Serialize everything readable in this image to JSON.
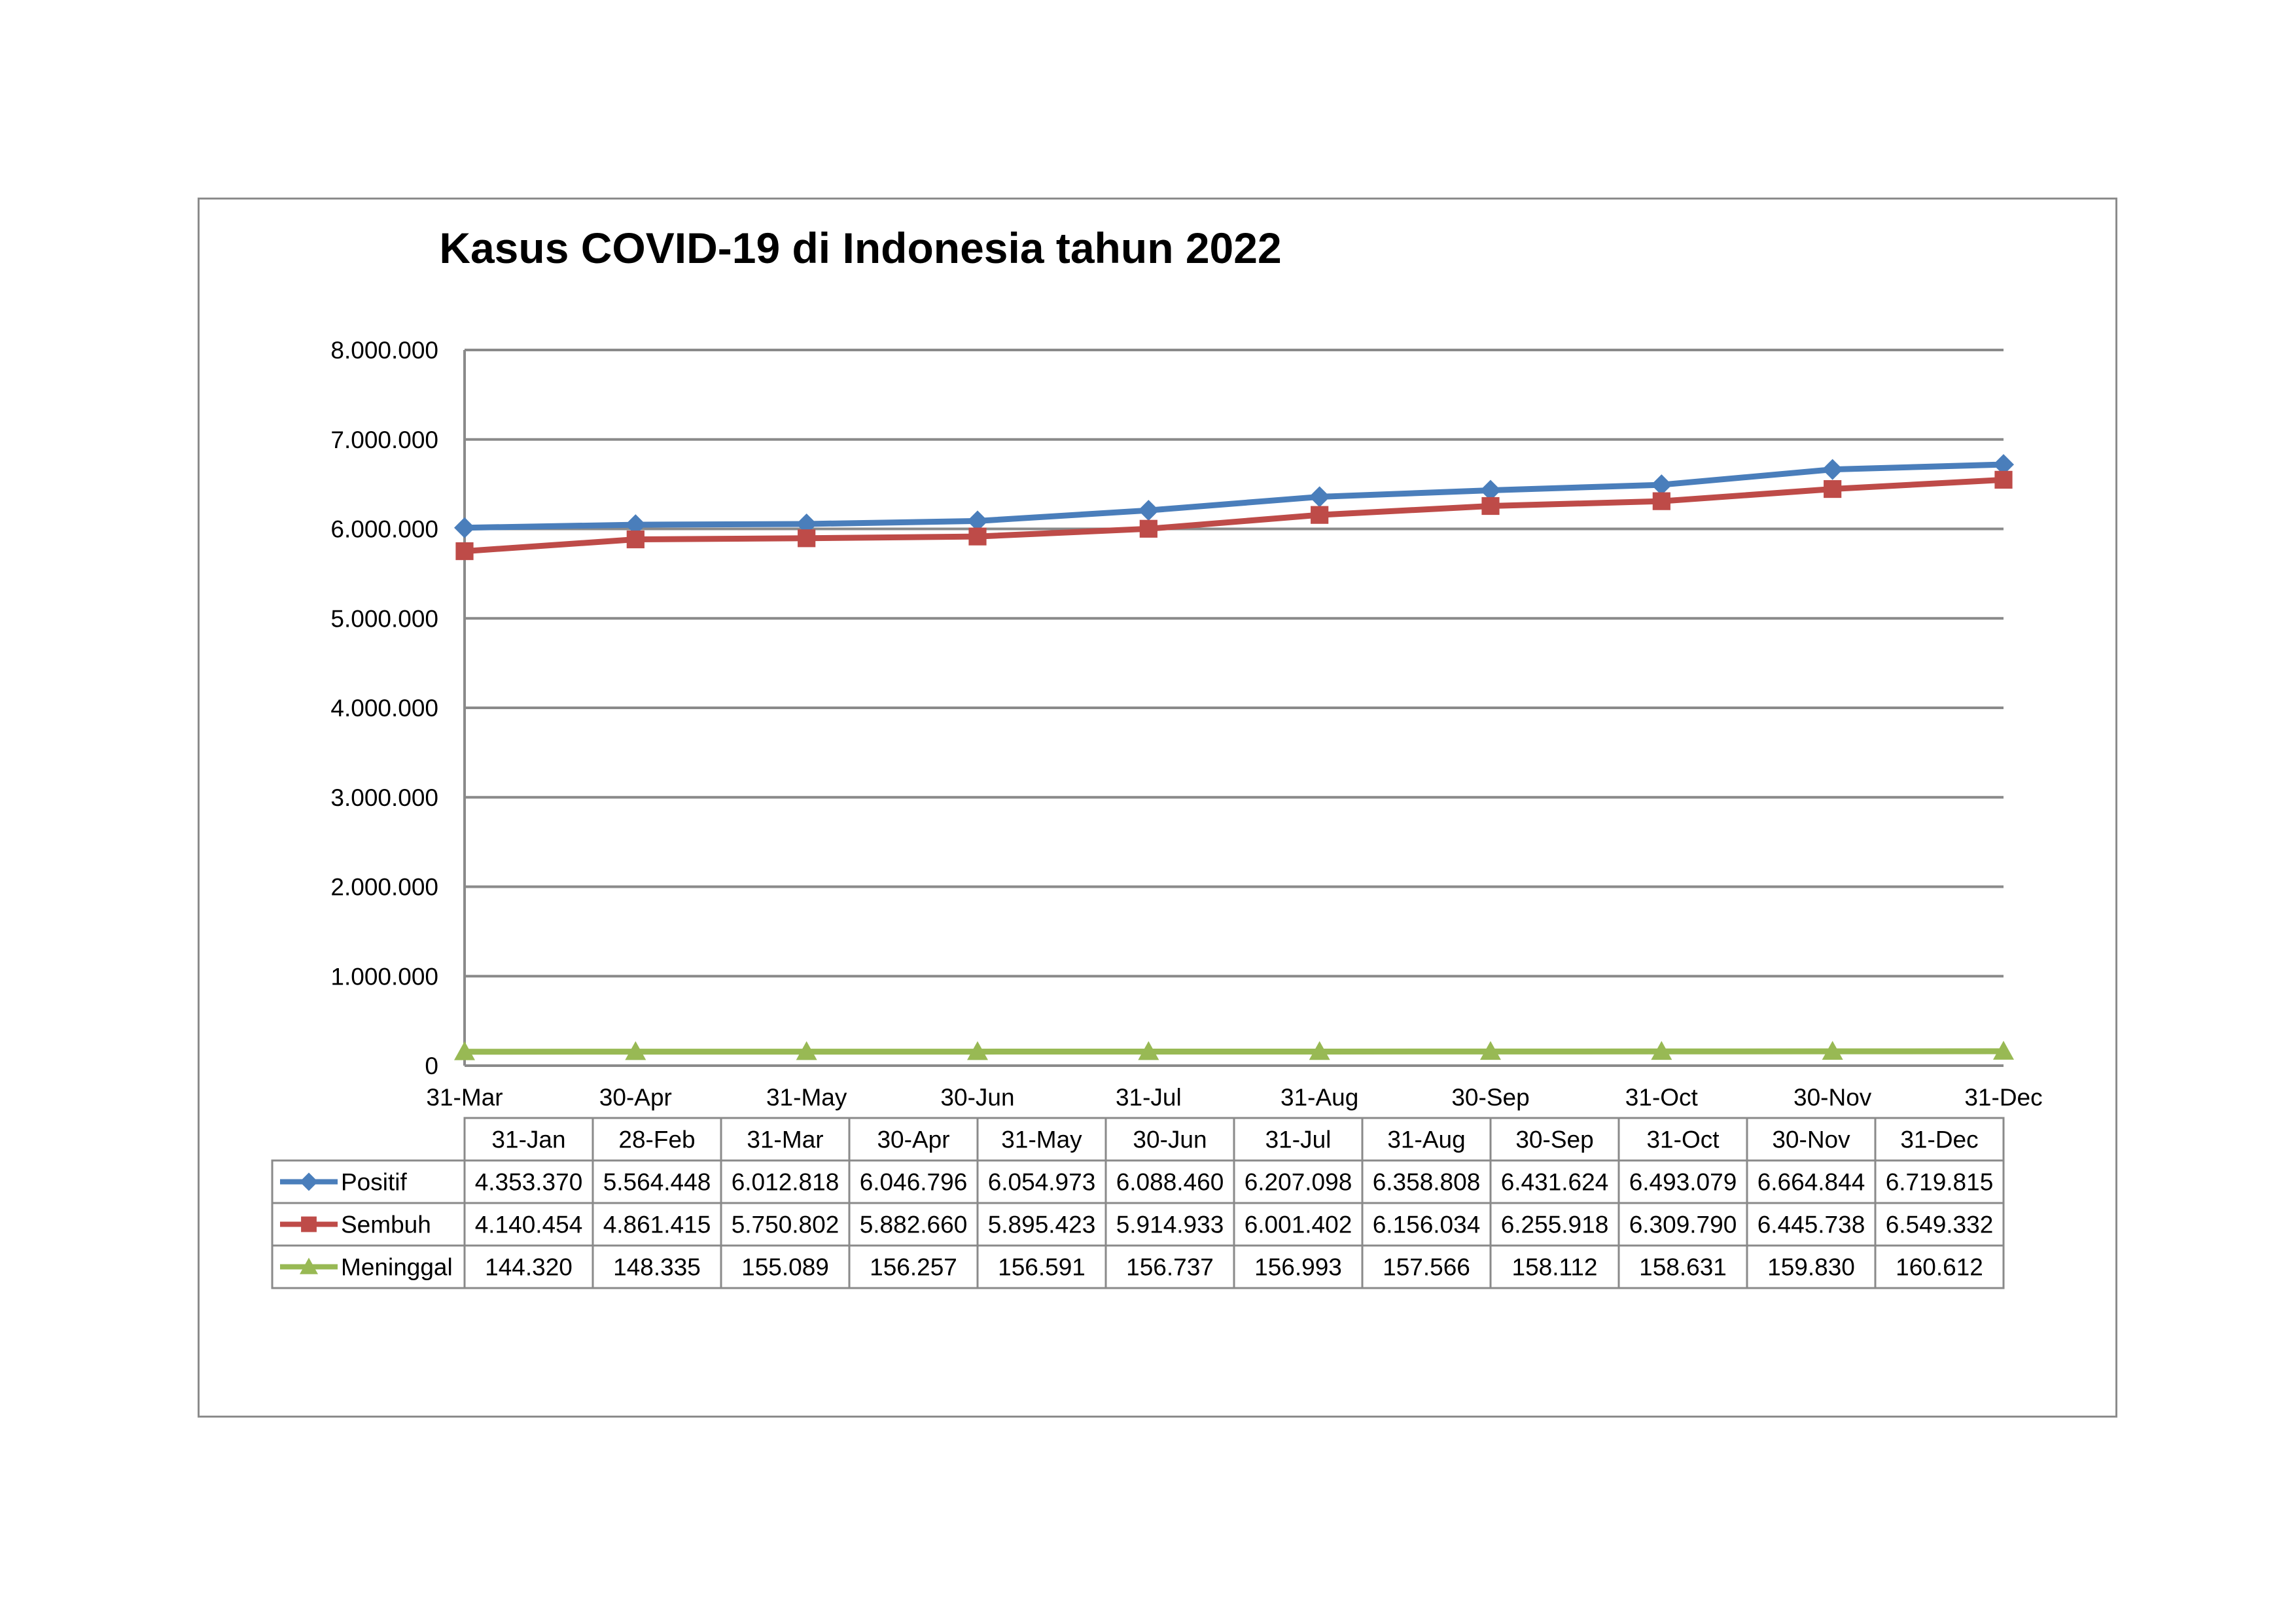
{
  "chart_data": {
    "type": "line",
    "title": "Kasus COVID-19 di Indonesia tahun 2022",
    "y_ticks": [
      "0",
      "1.000.000",
      "2.000.000",
      "3.000.000",
      "4.000.000",
      "5.000.000",
      "6.000.000",
      "7.000.000",
      "8.000.000"
    ],
    "ylim": [
      0,
      8000000
    ],
    "x_tick_labels": [
      "31-Mar",
      "30-Apr",
      "31-May",
      "30-Jun",
      "31-Jul",
      "31-Aug",
      "30-Sep",
      "31-Oct",
      "30-Nov",
      "31-Dec"
    ],
    "grid": true,
    "legend_placement": "data table below chart",
    "series": [
      {
        "name": "Positif",
        "color": "#4a7ebb",
        "marker": "diamond",
        "plotted_values": [
          6012818,
          6046796,
          6054973,
          6088460,
          6207098,
          6358808,
          6431624,
          6493079,
          6664844,
          6719815
        ],
        "table_values": [
          "4.353.370",
          "5.564.448",
          "6.012.818",
          "6.046.796",
          "6.054.973",
          "6.088.460",
          "6.207.098",
          "6.358.808",
          "6.431.624",
          "6.493.079",
          "6.664.844",
          "6.719.815"
        ]
      },
      {
        "name": "Sembuh",
        "color": "#be4b48",
        "marker": "square",
        "plotted_values": [
          5750802,
          5882660,
          5895423,
          5914933,
          6001402,
          6156034,
          6255918,
          6309790,
          6445738,
          6549332
        ],
        "table_values": [
          "4.140.454",
          "4.861.415",
          "5.750.802",
          "5.882.660",
          "5.895.423",
          "5.914.933",
          "6.001.402",
          "6.156.034",
          "6.255.918",
          "6.309.790",
          "6.445.738",
          "6.549.332"
        ]
      },
      {
        "name": "Meninggal",
        "color": "#98b954",
        "marker": "triangle",
        "plotted_values": [
          155089,
          156257,
          156591,
          156737,
          156993,
          157566,
          158112,
          158631,
          159830,
          160612
        ],
        "table_values": [
          "144.320",
          "148.335",
          "155.089",
          "156.257",
          "156.591",
          "156.737",
          "156.993",
          "157.566",
          "158.112",
          "158.631",
          "159.830",
          "160.612"
        ]
      }
    ],
    "table_columns": [
      "31-Jan",
      "28-Feb",
      "31-Mar",
      "30-Apr",
      "31-May",
      "30-Jun",
      "31-Jul",
      "31-Aug",
      "30-Sep",
      "31-Oct",
      "30-Nov",
      "31-Dec"
    ]
  }
}
